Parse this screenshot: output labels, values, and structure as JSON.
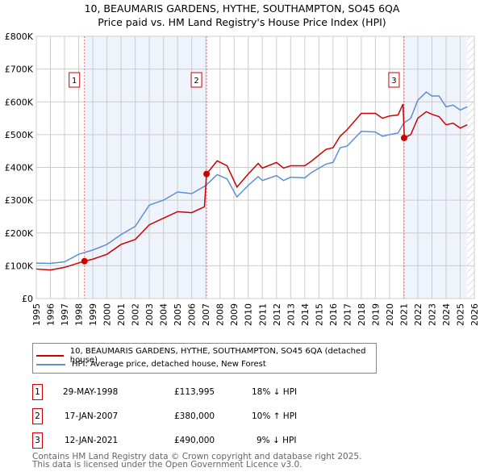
{
  "chart_data": {
    "type": "line",
    "title": "10, BEAUMARIS GARDENS, HYTHE, SOUTHAMPTON, SO45 6QA",
    "subtitle": "Price paid vs. HM Land Registry's House Price Index (HPI)",
    "xlim": [
      1995,
      2026
    ],
    "ylim": [
      0,
      800000
    ],
    "x_ticks": [
      "1995",
      "1996",
      "1997",
      "1998",
      "1999",
      "2000",
      "2001",
      "2002",
      "2003",
      "2004",
      "2005",
      "2006",
      "2007",
      "2008",
      "2009",
      "2010",
      "2011",
      "2012",
      "2013",
      "2014",
      "2015",
      "2016",
      "2017",
      "2018",
      "2019",
      "2020",
      "2021",
      "2022",
      "2023",
      "2024",
      "2025",
      "2026"
    ],
    "y_ticks": [
      {
        "v": 0,
        "label": "£0"
      },
      {
        "v": 100000,
        "label": "£100K"
      },
      {
        "v": 200000,
        "label": "£200K"
      },
      {
        "v": 300000,
        "label": "£300K"
      },
      {
        "v": 400000,
        "label": "£400K"
      },
      {
        "v": 500000,
        "label": "£500K"
      },
      {
        "v": 600000,
        "label": "£600K"
      },
      {
        "v": 700000,
        "label": "£700K"
      },
      {
        "v": 800000,
        "label": "£800K"
      }
    ],
    "grid": true,
    "series": [
      {
        "name": "10, BEAUMARIS GARDENS, HYTHE, SOUTHAMPTON, SO45 6QA (detached house)",
        "color": "#cc0000",
        "x": [
          1995,
          1996,
          1997,
          1998.4,
          1999,
          2000,
          2001,
          2002,
          2003,
          2004,
          2005,
          2006,
          2006.9,
          2007.05,
          2007.8,
          2008.5,
          2009.2,
          2010,
          2010.7,
          2011,
          2012,
          2012.5,
          2013,
          2014,
          2014.5,
          2015.5,
          2016,
          2016.5,
          2017,
          2018,
          2019,
          2019.5,
          2020,
          2020.6,
          2020.95,
          2021.05,
          2021.5,
          2022,
          2022.6,
          2023,
          2023.5,
          2024,
          2024.5,
          2025,
          2025.5
        ],
        "y": [
          90000,
          87000,
          95000,
          114000,
          120000,
          135000,
          165000,
          180000,
          225000,
          245000,
          265000,
          262000,
          280000,
          380000,
          420000,
          405000,
          340000,
          380000,
          412000,
          398000,
          415000,
          398000,
          405000,
          405000,
          420000,
          455000,
          460000,
          495000,
          515000,
          565000,
          565000,
          550000,
          557000,
          560000,
          593000,
          490000,
          500000,
          550000,
          570000,
          562000,
          555000,
          530000,
          535000,
          520000,
          530000
        ]
      },
      {
        "name": "HPI: Average price, detached house, New Forest",
        "color": "#5b8fd6",
        "x": [
          1995,
          1996,
          1997,
          1998,
          1999,
          2000,
          2001,
          2002,
          2003,
          2004,
          2005,
          2006,
          2007,
          2007.8,
          2008.5,
          2009.2,
          2010,
          2010.7,
          2011,
          2012,
          2012.5,
          2013,
          2014,
          2014.5,
          2015.5,
          2016,
          2016.5,
          2017,
          2018,
          2019,
          2019.5,
          2020,
          2020.6,
          2021,
          2021.5,
          2022,
          2022.6,
          2023,
          2023.5,
          2024,
          2024.5,
          2025,
          2025.5
        ],
        "y": [
          108000,
          107000,
          112000,
          135000,
          148000,
          165000,
          195000,
          220000,
          285000,
          300000,
          325000,
          320000,
          345000,
          378000,
          365000,
          310000,
          345000,
          372000,
          360000,
          375000,
          360000,
          370000,
          368000,
          385000,
          410000,
          415000,
          460000,
          465000,
          510000,
          508000,
          495000,
          500000,
          505000,
          535000,
          550000,
          605000,
          630000,
          618000,
          618000,
          585000,
          590000,
          575000,
          585000
        ]
      }
    ],
    "sales": [
      {
        "n": "1",
        "x": 1998.41,
        "y": 113995,
        "date": "29-MAY-1998",
        "price": "£113,995",
        "hpi": "18% ↓ HPI"
      },
      {
        "n": "2",
        "x": 2007.05,
        "y": 380000,
        "date": "17-JAN-2007",
        "price": "£380,000",
        "hpi": "10% ↑ HPI"
      },
      {
        "n": "3",
        "x": 2021.03,
        "y": 490000,
        "date": "12-JAN-2021",
        "price": "£490,000",
        "hpi": "9% ↓ HPI"
      }
    ],
    "shaded_ranges": [
      [
        1998.41,
        2007.05
      ],
      [
        2021.03,
        2025.5
      ]
    ],
    "hatched_from": 2025.5
  },
  "footer": {
    "line1": "Contains HM Land Registry data © Crown copyright and database right 2025.",
    "line2": "This data is licensed under the Open Government Licence v3.0."
  }
}
